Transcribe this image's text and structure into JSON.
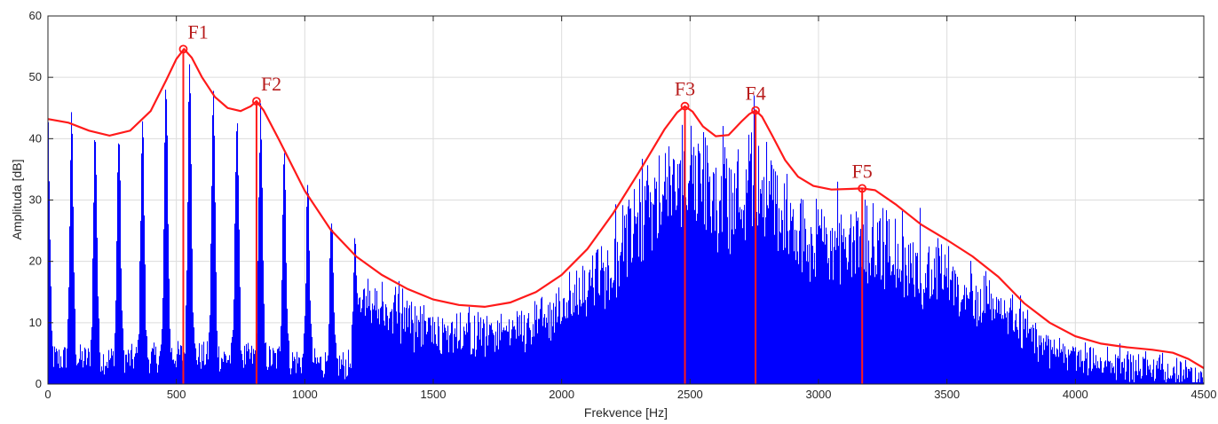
{
  "chart_data": {
    "type": "bar",
    "xlabel": "Frekvence [Hz]",
    "ylabel": "Amplituda [dB]",
    "xlim": [
      0,
      4500
    ],
    "ylim": [
      0,
      60
    ],
    "xticks": [
      0,
      500,
      1000,
      1500,
      2000,
      2500,
      3000,
      3500,
      4000,
      4500
    ],
    "yticks": [
      0,
      10,
      20,
      30,
      40,
      50,
      60
    ],
    "grid": true,
    "colors": {
      "spectrum": "#0000ff",
      "envelope": "#ff1a1a",
      "formant_text": "#b81c1c"
    },
    "envelope": {
      "x": [
        0,
        80,
        160,
        240,
        320,
        400,
        460,
        500,
        530,
        560,
        600,
        650,
        700,
        750,
        790,
        812,
        840,
        900,
        1000,
        1100,
        1200,
        1300,
        1400,
        1500,
        1600,
        1700,
        1800,
        1900,
        2000,
        2100,
        2200,
        2300,
        2400,
        2450,
        2480,
        2510,
        2550,
        2600,
        2650,
        2700,
        2730,
        2755,
        2780,
        2820,
        2870,
        2920,
        2980,
        3050,
        3120,
        3170,
        3220,
        3300,
        3400,
        3500,
        3600,
        3700,
        3800,
        3900,
        4000,
        4100,
        4200,
        4300,
        4380,
        4440,
        4500
      ],
      "y": [
        43.2,
        42.6,
        41.3,
        40.5,
        41.3,
        44.5,
        49.5,
        53.0,
        54.6,
        53.2,
        50.0,
        46.8,
        45.0,
        44.5,
        45.3,
        46.1,
        44.6,
        39.8,
        31.5,
        25.2,
        20.8,
        17.8,
        15.5,
        13.8,
        12.9,
        12.6,
        13.3,
        15.0,
        17.8,
        22.0,
        27.8,
        34.5,
        41.5,
        44.3,
        45.3,
        44.4,
        42.0,
        40.4,
        40.6,
        42.8,
        44.0,
        44.6,
        43.6,
        40.5,
        36.5,
        33.8,
        32.3,
        31.7,
        31.8,
        31.9,
        31.6,
        29.3,
        26.0,
        23.5,
        20.8,
        17.5,
        13.2,
        10.0,
        7.8,
        6.6,
        6.0,
        5.6,
        5.1,
        4.1,
        2.6
      ]
    },
    "formants": [
      {
        "name": "F1",
        "freq": 527,
        "amp": 54.6
      },
      {
        "name": "F2",
        "freq": 812,
        "amp": 46.1
      },
      {
        "name": "F3",
        "freq": 2480,
        "amp": 45.3
      },
      {
        "name": "F4",
        "freq": 2755,
        "amp": 44.6
      },
      {
        "name": "F5",
        "freq": 3170,
        "amp": 31.9
      }
    ]
  }
}
